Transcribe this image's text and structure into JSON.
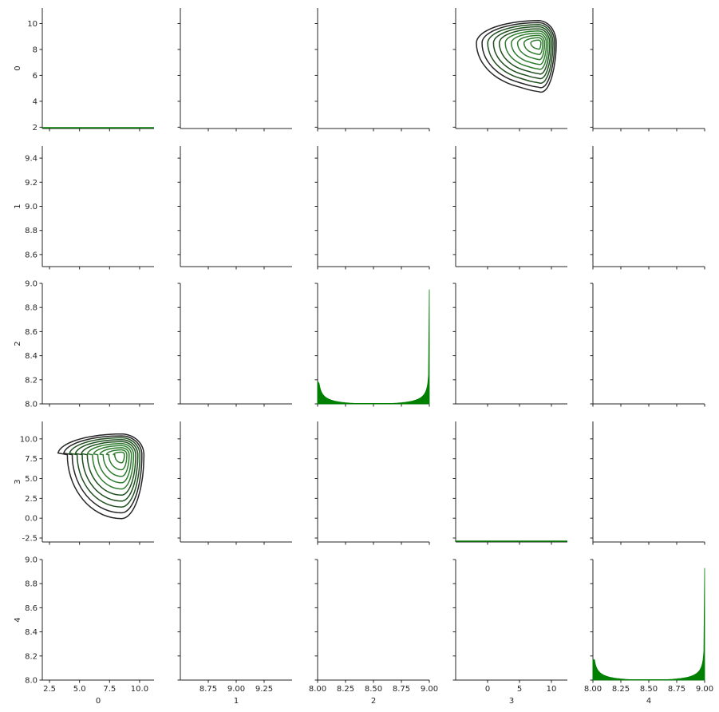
{
  "chart_data": {
    "type": "pairgrid",
    "variables": [
      "0",
      "1",
      "2",
      "3",
      "4"
    ],
    "colors": {
      "diag": "#008000",
      "contour_dark": "#262626",
      "contour_mid": "#1e5a1e",
      "contour_light": "#2e8b2e"
    },
    "row_axes": [
      {
        "label": "0",
        "ylim": [
          1.9,
          11.2
        ],
        "ticks": [
          2,
          4,
          6,
          8,
          10
        ],
        "tick_labels": [
          "2",
          "4",
          "6",
          "8",
          "10"
        ]
      },
      {
        "label": "1",
        "ylim": [
          8.5,
          9.5
        ],
        "ticks": [
          8.6,
          8.8,
          9.0,
          9.2,
          9.4
        ],
        "tick_labels": [
          "8.6",
          "8.8",
          "9.0",
          "9.2",
          "9.4"
        ]
      },
      {
        "label": "2",
        "ylim": [
          8.0,
          9.0
        ],
        "ticks": [
          8.0,
          8.2,
          8.4,
          8.6,
          8.8,
          9.0
        ],
        "tick_labels": [
          "8.0",
          "8.2",
          "8.4",
          "8.6",
          "8.8",
          "9.0"
        ]
      },
      {
        "label": "3",
        "ylim": [
          -3.0,
          12.2
        ],
        "ticks": [
          -2.5,
          0.0,
          2.5,
          5.0,
          7.5,
          10.0
        ],
        "tick_labels": [
          "-2.5",
          "0.0",
          "2.5",
          "5.0",
          "7.5",
          "10.0"
        ]
      },
      {
        "label": "4",
        "ylim": [
          8.0,
          9.0
        ],
        "ticks": [
          8.0,
          8.2,
          8.4,
          8.6,
          8.8,
          9.0
        ],
        "tick_labels": [
          "8.0",
          "8.2",
          "8.4",
          "8.6",
          "8.8",
          "9.0"
        ]
      }
    ],
    "col_axes": [
      {
        "label": "0",
        "xlim": [
          1.9,
          11.2
        ],
        "ticks": [
          2.5,
          5.0,
          7.5,
          10.0
        ],
        "tick_labels": [
          "2.5",
          "5.0",
          "7.5",
          "10.0"
        ]
      },
      {
        "label": "1",
        "xlim": [
          8.5,
          9.5
        ],
        "ticks": [
          8.75,
          9.0,
          9.25
        ],
        "tick_labels": [
          "8.75",
          "9.00",
          "9.25"
        ]
      },
      {
        "label": "2",
        "xlim": [
          8.0,
          9.0
        ],
        "ticks": [
          8.0,
          8.25,
          8.5,
          8.75,
          9.0
        ],
        "tick_labels": [
          "8.00",
          "8.25",
          "8.50",
          "8.75",
          "9.00"
        ]
      },
      {
        "label": "3",
        "xlim": [
          -5.0,
          12.5
        ],
        "ticks": [
          0,
          5,
          10
        ],
        "tick_labels": [
          "0",
          "5",
          "10"
        ]
      },
      {
        "label": "4",
        "xlim": [
          8.0,
          9.0
        ],
        "ticks": [
          8.0,
          8.25,
          8.5,
          8.75,
          9.0
        ],
        "tick_labels": [
          "8.00",
          "8.25",
          "8.50",
          "8.75",
          "9.00"
        ]
      }
    ],
    "diagonal": [
      {
        "var": "0",
        "kind": "flat",
        "level": 0.0
      },
      {
        "var": "1",
        "kind": "empty"
      },
      {
        "var": "2",
        "kind": "u_hist",
        "edge_peak_left": 0.18,
        "edge_peak_right": 0.95
      },
      {
        "var": "3",
        "kind": "flat",
        "level": 0.0
      },
      {
        "var": "4",
        "kind": "u_hist",
        "edge_peak_left": 0.17,
        "edge_peak_right": 0.93
      }
    ],
    "kde_panels": [
      {
        "row": 0,
        "col": 3,
        "x_var": "3",
        "y_var": "0",
        "center": [
          8.0,
          8.5
        ]
      },
      {
        "row": 3,
        "col": 0,
        "x_var": "0",
        "y_var": "3",
        "center": [
          8.5,
          8.0
        ]
      }
    ]
  }
}
